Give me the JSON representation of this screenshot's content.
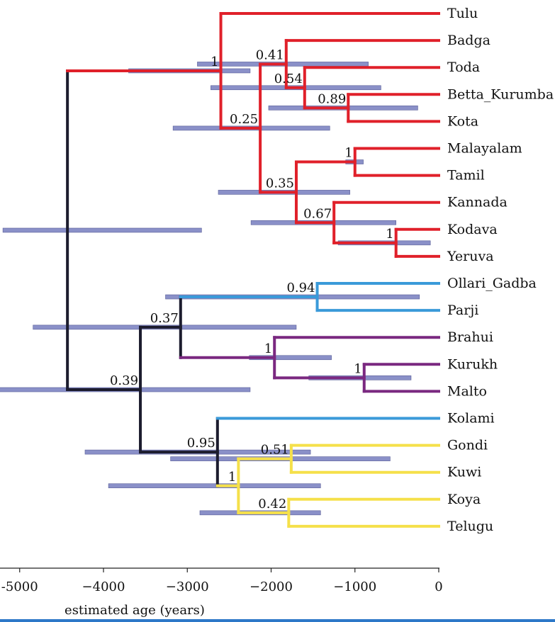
{
  "tips": [
    "Tulu",
    "Badga",
    "Toda",
    "Betta_Kurumba",
    "Kota",
    "Malayalam",
    "Tamil",
    "Kannada",
    "Kodava",
    "Yeruva",
    "Ollari_Gadba",
    "Parji",
    "Brahui",
    "Kurukh",
    "Malto",
    "Kolami",
    "Gondi",
    "Kuwi",
    "Koya",
    "Telugu"
  ],
  "colors": {
    "south_dravidian": "#e0202a",
    "central_blue": "#3a9ad9",
    "north_dravidian": "#7a2880",
    "gondi_group": "#f5e04a",
    "backbone": "#1c1c2e",
    "ci_bar": "#8a90c8",
    "bottom_strip": "#2d78c8"
  },
  "nodes": [
    {
      "id": "root",
      "age": -4430,
      "children": [
        "sd",
        "cnd"
      ]
    },
    {
      "id": "sd",
      "age": -2600,
      "support": "1",
      "children": [
        "Tulu",
        "sd2"
      ],
      "ci": [
        -3700,
        -2250
      ],
      "color": "south_dravidian"
    },
    {
      "id": "sd2",
      "age": -2130,
      "support": "0.25",
      "children": [
        "nilgiri",
        "sd3"
      ],
      "ci": [
        -3170,
        -1300
      ],
      "color": "south_dravidian"
    },
    {
      "id": "nilgiri",
      "age": -1820,
      "support": "0.41",
      "children": [
        "Badga",
        "nil2"
      ],
      "ci": [
        -2880,
        -840
      ],
      "color": "south_dravidian"
    },
    {
      "id": "nil2",
      "age": -1600,
      "support": "0.54",
      "children": [
        "Toda",
        "nil3"
      ],
      "ci": [
        -2720,
        -690
      ],
      "color": "south_dravidian"
    },
    {
      "id": "nil3",
      "age": -1080,
      "support": "0.89",
      "children": [
        "Betta_Kurumba",
        "Kota"
      ],
      "ci": [
        -2030,
        -250
      ],
      "color": "south_dravidian"
    },
    {
      "id": "sd3",
      "age": -1700,
      "support": "0.35",
      "children": [
        "maltam",
        "kan"
      ],
      "ci": [
        -2630,
        -1060
      ],
      "color": "south_dravidian"
    },
    {
      "id": "maltam",
      "age": -1000,
      "support": "1",
      "children": [
        "Malayalam",
        "Tamil"
      ],
      "ci": [
        -1110,
        -900
      ],
      "color": "south_dravidian"
    },
    {
      "id": "kan",
      "age": -1250,
      "support": "0.67",
      "children": [
        "Kannada",
        "kod"
      ],
      "ci": [
        -2240,
        -510
      ],
      "color": "south_dravidian"
    },
    {
      "id": "kod",
      "age": -510,
      "support": "1",
      "children": [
        "Kodava",
        "Yeruva"
      ],
      "ci": [
        -1200,
        -100
      ],
      "color": "south_dravidian"
    },
    {
      "id": "cnd",
      "age": -3560,
      "support": "0.39",
      "children": [
        "cn",
        "cd"
      ],
      "ci": [
        -5300,
        -2250
      ]
    },
    {
      "id": "cn",
      "age": -3080,
      "support": "0.37",
      "children": [
        "olp",
        "nd"
      ],
      "ci": [
        -4840,
        -1700
      ]
    },
    {
      "id": "olp",
      "age": -1450,
      "support": "0.94",
      "children": [
        "Ollari_Gadba",
        "Parji"
      ],
      "ci": [
        -3260,
        -230
      ],
      "color": "central_blue"
    },
    {
      "id": "nd",
      "age": -1960,
      "support": "1",
      "children": [
        "Brahui",
        "km"
      ],
      "ci": [
        -2260,
        -1280
      ],
      "color": "north_dravidian"
    },
    {
      "id": "km",
      "age": -890,
      "support": "1",
      "children": [
        "Kurukh",
        "Malto"
      ],
      "ci": [
        -1550,
        -330
      ],
      "color": "north_dravidian"
    },
    {
      "id": "cd",
      "age": -2640,
      "support": "0.95",
      "children": [
        "Kolami",
        "sc"
      ],
      "ci": [
        -4220,
        -1530
      ]
    },
    {
      "id": "sc",
      "age": -2390,
      "support": "1",
      "children": [
        "gk",
        "kt"
      ],
      "ci": [
        -3940,
        -1410
      ],
      "color": "gondi_group"
    },
    {
      "id": "gk",
      "age": -1760,
      "support": "0.51",
      "children": [
        "Gondi",
        "Kuwi"
      ],
      "ci": [
        -3200,
        -580
      ],
      "color": "gondi_group"
    },
    {
      "id": "kt",
      "age": -1790,
      "support": "0.42",
      "children": [
        "Koya",
        "Telugu"
      ],
      "ci": [
        -2850,
        -1410
      ],
      "color": "gondi_group"
    }
  ],
  "tip_colors": {
    "Tulu": "south_dravidian",
    "Badga": "south_dravidian",
    "Toda": "south_dravidian",
    "Betta_Kurumba": "south_dravidian",
    "Kota": "south_dravidian",
    "Malayalam": "south_dravidian",
    "Tamil": "south_dravidian",
    "Kannada": "south_dravidian",
    "Kodava": "south_dravidian",
    "Yeruva": "south_dravidian",
    "Ollari_Gadba": "central_blue",
    "Parji": "central_blue",
    "Brahui": "north_dravidian",
    "Kurukh": "north_dravidian",
    "Malto": "north_dravidian",
    "Kolami": "central_blue",
    "Gondi": "gondi_group",
    "Kuwi": "gondi_group",
    "Koya": "gondi_group",
    "Telugu": "gondi_group"
  },
  "root_ci": [
    -5200,
    -2830
  ],
  "axis": {
    "ticks": [
      -5000,
      -4000,
      -3000,
      -2000,
      -1000,
      0
    ],
    "tick_labels": [
      "-5000",
      "−4000",
      "−3000",
      "−2000",
      "−1000",
      "0"
    ],
    "label": "estimated age (years)",
    "range": [
      -5000,
      0
    ]
  }
}
